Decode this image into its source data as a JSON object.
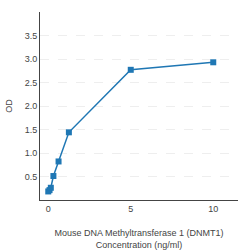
{
  "chart_data": {
    "type": "line",
    "x": [
      0,
      0.078,
      0.156,
      0.313,
      0.625,
      1.25,
      5,
      10
    ],
    "values": [
      0.182,
      0.21,
      0.26,
      0.51,
      0.82,
      1.44,
      2.77,
      2.93
    ],
    "marker": "square",
    "xlabel": "Mouse DNA Methyltransferase 1 (DNMT1)\nConcentration (ng/ml)",
    "ylabel": "OD",
    "xlim": [
      -0.5,
      11.5
    ],
    "ylim": [
      0,
      4.0
    ],
    "xticks": [
      0,
      5,
      10
    ],
    "yticks": [
      0.5,
      {
        "value": 1.0,
        "label": "1.0"
      },
      1.5,
      {
        "value": 2.0,
        "label": "2.0"
      },
      2.5,
      {
        "value": 3.0,
        "label": "3.0"
      },
      3.5
    ],
    "grid": "y"
  }
}
